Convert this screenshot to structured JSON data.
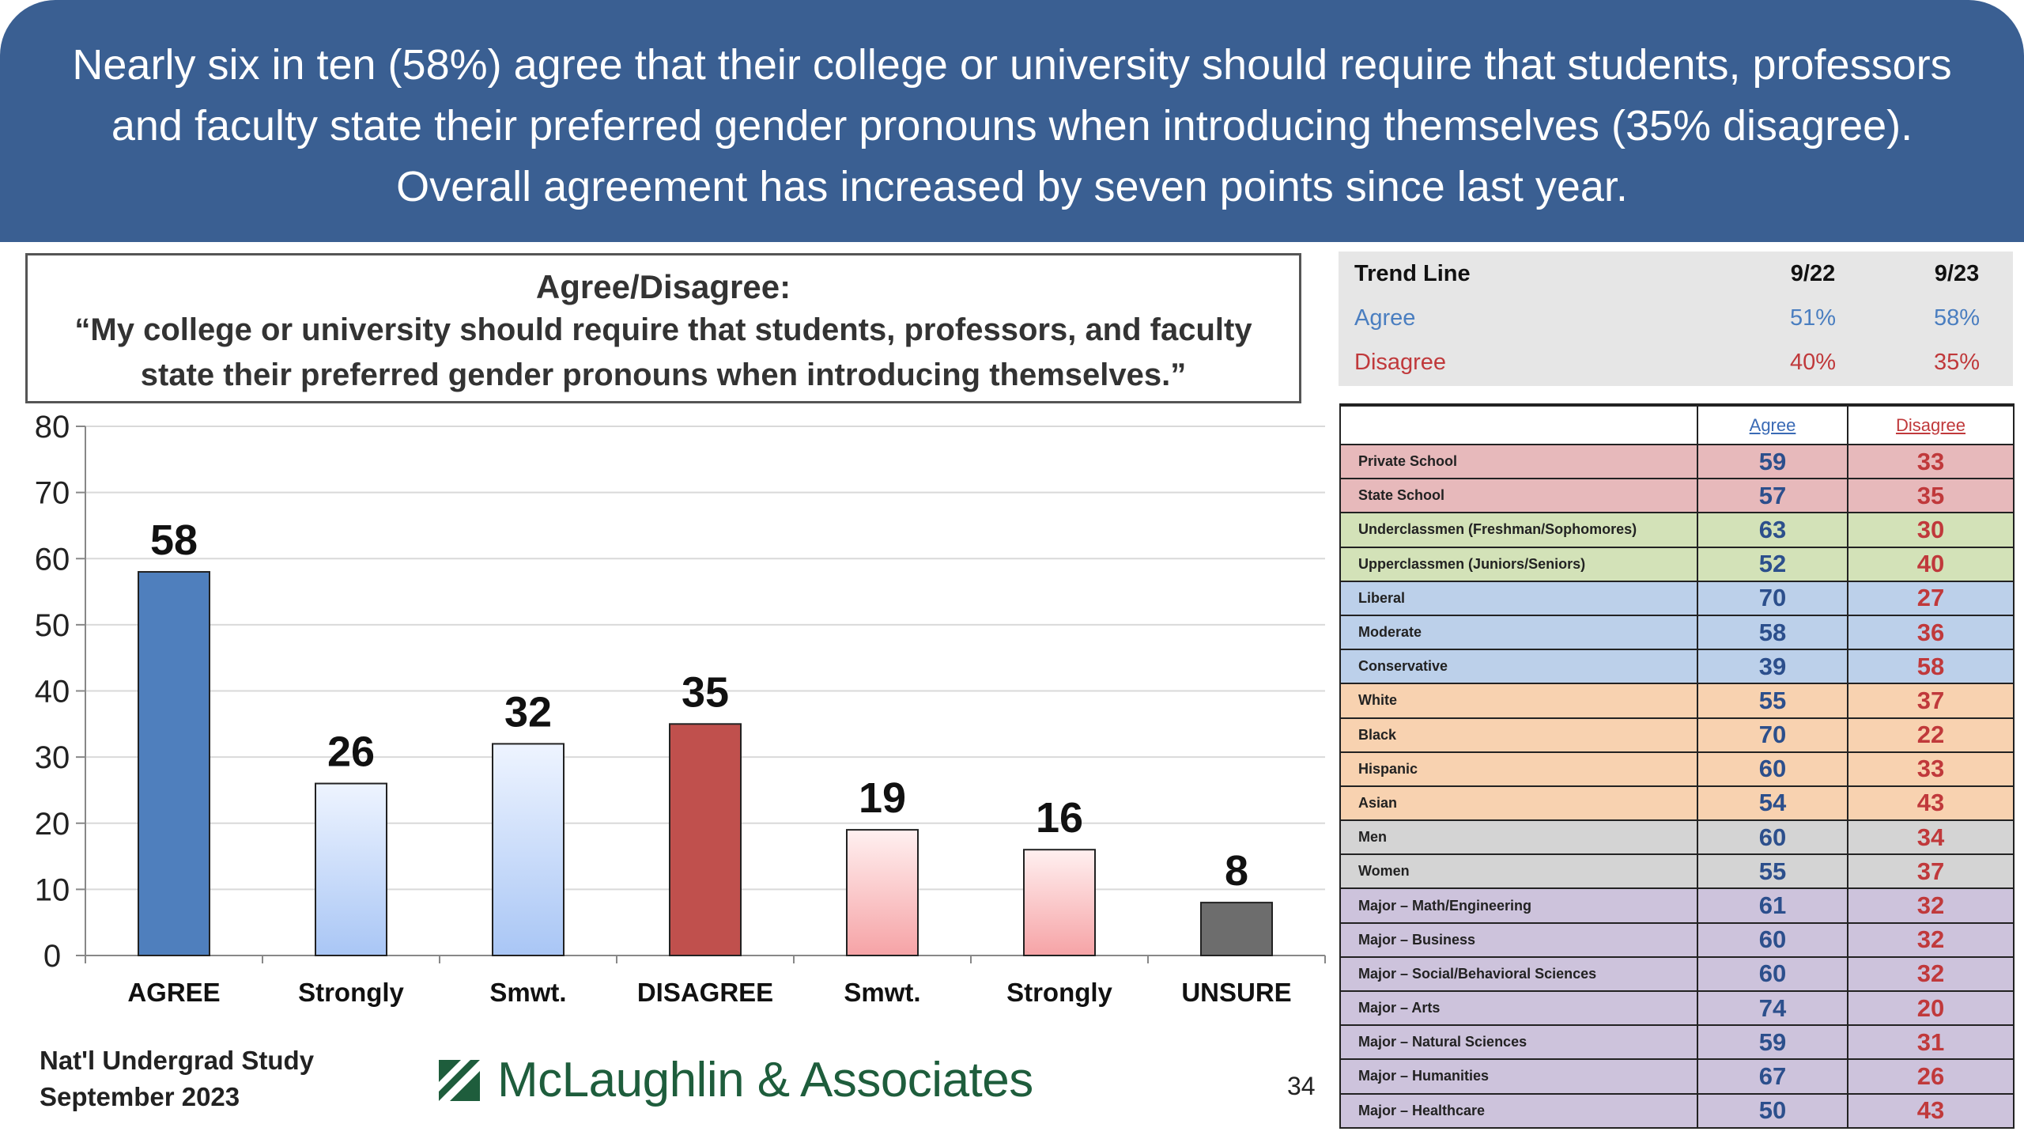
{
  "header": {
    "text": "Nearly six in ten (58%) agree that their college or university should require that students, professors and faculty state their preferred gender pronouns when introducing themselves (35% disagree). Overall agreement has increased by seven points since last year."
  },
  "question": {
    "heading": "Agree/Disagree:",
    "text": "“My college or university should require that students, professors, and faculty state their preferred gender pronouns when introducing themselves.”"
  },
  "chart_data": {
    "type": "bar",
    "categories": [
      "AGREE",
      "Strongly",
      "Smwt.",
      "DISAGREE",
      "Smwt.",
      "Strongly",
      "UNSURE"
    ],
    "values": [
      58,
      26,
      32,
      35,
      19,
      16,
      8
    ],
    "data_labels": [
      "58",
      "26",
      "32",
      "35",
      "19",
      "16",
      "8"
    ],
    "ylim": [
      0,
      80
    ],
    "yticks": [
      0,
      10,
      20,
      30,
      40,
      50,
      60,
      70,
      80
    ],
    "grid": true,
    "bar_fills": [
      "agree-solid",
      "agree-gradient",
      "agree-gradient",
      "disagree-solid",
      "disagree-gradient",
      "disagree-gradient",
      "unsure-solid"
    ],
    "colors": {
      "agree": "#4f7fbd",
      "agree_light": "#a9c6f5",
      "disagree": "#c0504d",
      "disagree_light": "#f6a3a6",
      "unsure": "#6d6d6d"
    }
  },
  "trend": {
    "title": "Trend Line",
    "col1": "9/22",
    "col2": "9/23",
    "rows": [
      {
        "label": "Agree",
        "v1": "51%",
        "v2": "58%"
      },
      {
        "label": "Disagree",
        "v1": "40%",
        "v2": "35%"
      }
    ]
  },
  "demographics": {
    "col_agree": "Agree",
    "col_disagree": "Disagree",
    "rows": [
      {
        "label": "Private School",
        "agree": "59",
        "disagree": "33",
        "color": "#e7b9bb"
      },
      {
        "label": "State School",
        "agree": "57",
        "disagree": "35",
        "color": "#e7b9bb"
      },
      {
        "label": "Underclassmen (Freshman/Sophomores)",
        "agree": "63",
        "disagree": "30",
        "color": "#d3e2b8"
      },
      {
        "label": "Upperclassmen (Juniors/Seniors)",
        "agree": "52",
        "disagree": "40",
        "color": "#d3e2b8"
      },
      {
        "label": "Liberal",
        "agree": "70",
        "disagree": "27",
        "color": "#bcd0ea"
      },
      {
        "label": "Moderate",
        "agree": "58",
        "disagree": "36",
        "color": "#bcd0ea"
      },
      {
        "label": "Conservative",
        "agree": "39",
        "disagree": "58",
        "color": "#bcd0ea"
      },
      {
        "label": "White",
        "agree": "55",
        "disagree": "37",
        "color": "#f8d2b0"
      },
      {
        "label": "Black",
        "agree": "70",
        "disagree": "22",
        "color": "#f8d2b0"
      },
      {
        "label": "Hispanic",
        "agree": "60",
        "disagree": "33",
        "color": "#f8d2b0"
      },
      {
        "label": "Asian",
        "agree": "54",
        "disagree": "43",
        "color": "#f8d2b0"
      },
      {
        "label": "Men",
        "agree": "60",
        "disagree": "34",
        "color": "#d4d4d4"
      },
      {
        "label": "Women",
        "agree": "55",
        "disagree": "37",
        "color": "#d4d4d4"
      },
      {
        "label": "Major – Math/Engineering",
        "agree": "61",
        "disagree": "32",
        "color": "#cdc3dc"
      },
      {
        "label": "Major – Business",
        "agree": "60",
        "disagree": "32",
        "color": "#cdc3dc"
      },
      {
        "label": "Major – Social/Behavioral Sciences",
        "agree": "60",
        "disagree": "32",
        "color": "#cdc3dc"
      },
      {
        "label": "Major – Arts",
        "agree": "74",
        "disagree": "20",
        "color": "#cdc3dc"
      },
      {
        "label": "Major – Natural Sciences",
        "agree": "59",
        "disagree": "31",
        "color": "#cdc3dc"
      },
      {
        "label": "Major – Humanities",
        "agree": "67",
        "disagree": "26",
        "color": "#cdc3dc"
      },
      {
        "label": "Major – Healthcare",
        "agree": "50",
        "disagree": "43",
        "color": "#cdc3dc"
      }
    ]
  },
  "footer": {
    "study_line1": "Nat'l Undergrad Study",
    "study_line2": "September 2023",
    "logo_text": "McLaughlin & Associates",
    "logo_icon": "mclaughlin-logo-mark-icon",
    "page_number": "34"
  }
}
